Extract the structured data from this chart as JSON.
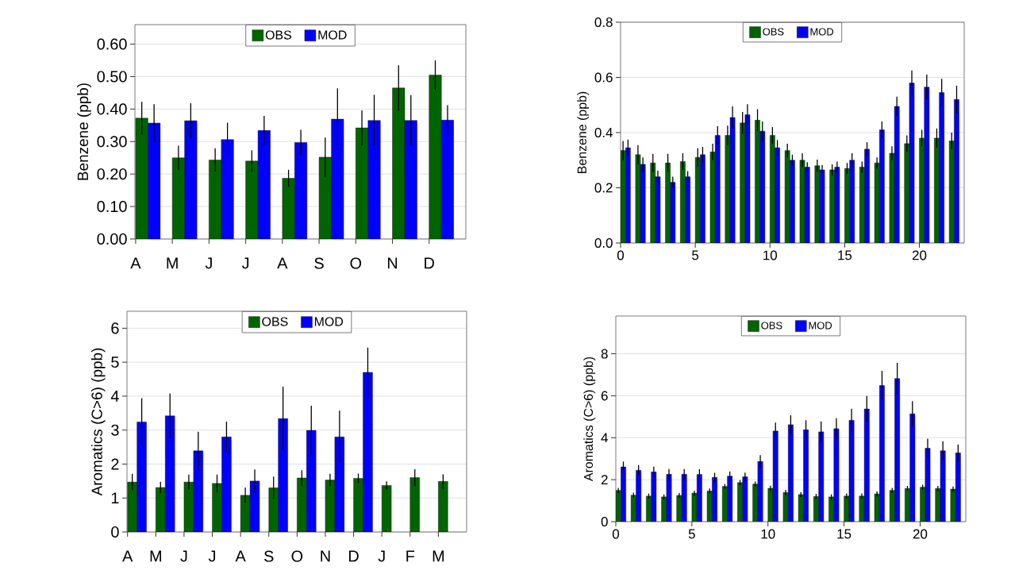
{
  "chart_data": [
    {
      "type": "bar",
      "ylabel": "Benzene  (ppb)",
      "categories": [
        "A",
        "M",
        "J",
        "J",
        "A",
        "S",
        "O",
        "N",
        "D"
      ],
      "series": [
        {
          "name": "OBS",
          "color": "#006400",
          "values": [
            0.372,
            0.25,
            0.243,
            0.24,
            0.187,
            0.252,
            0.342,
            0.465,
            0.505
          ],
          "errors": [
            0.05,
            0.037,
            0.036,
            0.033,
            0.026,
            0.06,
            0.054,
            0.07,
            0.045
          ]
        },
        {
          "name": "MOD",
          "color": "#0000ff",
          "values": [
            0.357,
            0.364,
            0.306,
            0.334,
            0.297,
            0.369,
            0.365,
            0.365,
            0.366
          ],
          "errors": [
            0.058,
            0.054,
            0.052,
            0.045,
            0.039,
            0.095,
            0.079,
            0.078,
            0.046
          ]
        }
      ],
      "ylim": [
        0,
        0.66
      ],
      "yticks": [
        {
          "value": 0,
          "label": "0.00"
        },
        {
          "value": 0.1,
          "label": "0.10"
        },
        {
          "value": 0.2,
          "label": "0.20"
        },
        {
          "value": 0.3,
          "label": "0.30"
        },
        {
          "value": 0.4,
          "label": "0.40"
        },
        {
          "value": 0.5,
          "label": "0.50"
        },
        {
          "value": 0.6,
          "label": "0.60"
        }
      ],
      "grid": "y",
      "legend": "top"
    },
    {
      "type": "bar",
      "ylabel": "Benzene (ppb)",
      "x": [
        0,
        1,
        2,
        3,
        4,
        5,
        6,
        7,
        8,
        9,
        10,
        11,
        12,
        13,
        14,
        15,
        16,
        17,
        18,
        19,
        20,
        21,
        22
      ],
      "series": [
        {
          "name": "OBS",
          "color": "#006400",
          "values": [
            0.335,
            0.32,
            0.29,
            0.29,
            0.295,
            0.31,
            0.33,
            0.39,
            0.435,
            0.445,
            0.39,
            0.335,
            0.3,
            0.28,
            0.265,
            0.27,
            0.275,
            0.29,
            0.325,
            0.36,
            0.38,
            0.38,
            0.37
          ],
          "errors": [
            0.035,
            0.035,
            0.033,
            0.033,
            0.03,
            0.033,
            0.03,
            0.035,
            0.04,
            0.04,
            0.03,
            0.025,
            0.025,
            0.022,
            0.02,
            0.02,
            0.02,
            0.02,
            0.025,
            0.03,
            0.03,
            0.035,
            0.03
          ]
        },
        {
          "name": "MOD",
          "color": "#0000ff",
          "values": [
            0.345,
            0.285,
            0.24,
            0.22,
            0.24,
            0.32,
            0.39,
            0.455,
            0.465,
            0.405,
            0.345,
            0.3,
            0.275,
            0.265,
            0.275,
            0.3,
            0.34,
            0.41,
            0.495,
            0.58,
            0.565,
            0.545,
            0.52
          ],
          "errors": [
            0.03,
            0.025,
            0.022,
            0.02,
            0.02,
            0.028,
            0.033,
            0.04,
            0.038,
            0.035,
            0.028,
            0.02,
            0.018,
            0.018,
            0.02,
            0.025,
            0.025,
            0.03,
            0.035,
            0.045,
            0.045,
            0.05,
            0.05
          ]
        }
      ],
      "xlim": [
        0,
        23
      ],
      "xticks": [
        0,
        5,
        10,
        15,
        20
      ],
      "ylim": [
        0,
        0.8
      ],
      "yticks": [
        {
          "value": 0,
          "label": "0.0"
        },
        {
          "value": 0.2,
          "label": "0.2"
        },
        {
          "value": 0.4,
          "label": "0.4"
        },
        {
          "value": 0.6,
          "label": "0.6"
        },
        {
          "value": 0.8,
          "label": "0.8"
        }
      ],
      "grid": "y",
      "legend": "top"
    },
    {
      "type": "bar",
      "ylabel": "Aromatics (C>6)  (ppb)",
      "categories": [
        "A",
        "M",
        "J",
        "J",
        "A",
        "S",
        "O",
        "N",
        "D",
        "J",
        "F",
        "M"
      ],
      "series": [
        {
          "name": "OBS",
          "color": "#006400",
          "values": [
            1.47,
            1.31,
            1.47,
            1.43,
            1.08,
            1.3,
            1.59,
            1.53,
            1.58,
            1.37,
            1.6,
            1.49
          ],
          "errors": [
            0.24,
            0.17,
            0.22,
            0.26,
            0.23,
            0.33,
            0.23,
            0.18,
            0.14,
            0.12,
            0.25,
            0.21
          ]
        },
        {
          "name": "MOD",
          "color": "#0000ff",
          "values": [
            3.24,
            3.42,
            2.39,
            2.8,
            1.5,
            3.34,
            2.99,
            2.8,
            4.7,
            null,
            null,
            null
          ],
          "errors": [
            0.7,
            0.66,
            0.56,
            0.45,
            0.34,
            0.94,
            0.73,
            0.77,
            0.73,
            null,
            null,
            null
          ]
        }
      ],
      "ylim": [
        0,
        6.5
      ],
      "yticks": [
        0,
        1,
        2,
        3,
        4,
        5,
        6
      ],
      "grid": "y",
      "legend": "top"
    },
    {
      "type": "bar",
      "ylabel": "Aromatics (C>6) (ppb)",
      "x": [
        0,
        1,
        2,
        3,
        4,
        5,
        6,
        7,
        8,
        9,
        10,
        11,
        12,
        13,
        14,
        15,
        16,
        17,
        18,
        19,
        20,
        21,
        22
      ],
      "series": [
        {
          "name": "OBS",
          "color": "#006400",
          "values": [
            1.49,
            1.26,
            1.22,
            1.18,
            1.25,
            1.36,
            1.46,
            1.68,
            1.86,
            1.79,
            1.59,
            1.39,
            1.29,
            1.2,
            1.18,
            1.22,
            1.22,
            1.32,
            1.49,
            1.58,
            1.64,
            1.58,
            1.55
          ],
          "errors": [
            0.12,
            0.12,
            0.12,
            0.12,
            0.12,
            0.12,
            0.12,
            0.12,
            0.12,
            0.12,
            0.12,
            0.12,
            0.12,
            0.12,
            0.12,
            0.12,
            0.12,
            0.12,
            0.12,
            0.12,
            0.12,
            0.12,
            0.12
          ]
        },
        {
          "name": "MOD",
          "color": "#0000ff",
          "values": [
            2.61,
            2.45,
            2.37,
            2.26,
            2.26,
            2.25,
            2.11,
            2.17,
            2.14,
            2.87,
            4.32,
            4.62,
            4.38,
            4.28,
            4.43,
            4.83,
            5.37,
            6.49,
            6.82,
            5.14,
            3.5,
            3.38,
            3.28
          ],
          "errors": [
            0.25,
            0.25,
            0.25,
            0.25,
            0.25,
            0.25,
            0.22,
            0.22,
            0.2,
            0.3,
            0.4,
            0.45,
            0.45,
            0.5,
            0.5,
            0.55,
            0.62,
            0.7,
            0.75,
            0.6,
            0.45,
            0.45,
            0.4
          ]
        }
      ],
      "xlim": [
        0,
        23
      ],
      "xticks": [
        0,
        5,
        10,
        15,
        20
      ],
      "ylim": [
        0,
        9.8
      ],
      "yticks": [
        0,
        2,
        4,
        6,
        8
      ],
      "grid": "y",
      "legend": "top"
    }
  ]
}
